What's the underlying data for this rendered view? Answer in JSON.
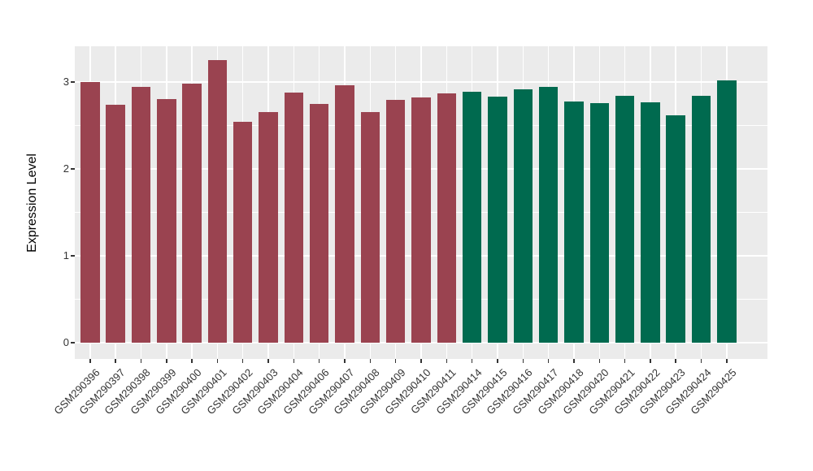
{
  "figure": {
    "background": "#FFFFFF",
    "panel_bg": "#EBEBEB",
    "grid_color": "#FFFFFF",
    "tick_color": "#333333",
    "axis_text_color": "#333333",
    "axis_title_color": "#000000"
  },
  "chart_data": {
    "type": "bar",
    "title": "",
    "xlabel": "",
    "ylabel": "Expression Level",
    "categories": [
      "GSM290396",
      "GSM290397",
      "GSM290398",
      "GSM290399",
      "GSM290400",
      "GSM290401",
      "GSM290402",
      "GSM290403",
      "GSM290404",
      "GSM290406",
      "GSM290407",
      "GSM290408",
      "GSM290409",
      "GSM290410",
      "GSM290411",
      "GSM290414",
      "GSM290415",
      "GSM290416",
      "GSM290417",
      "GSM290418",
      "GSM290420",
      "GSM290421",
      "GSM290422",
      "GSM290423",
      "GSM290424",
      "GSM290425"
    ],
    "values": [
      3.0,
      2.74,
      2.94,
      2.8,
      2.98,
      3.25,
      2.54,
      2.65,
      2.88,
      2.75,
      2.96,
      2.65,
      2.79,
      2.82,
      2.87,
      2.89,
      2.83,
      2.92,
      2.94,
      2.78,
      2.76,
      2.84,
      2.77,
      2.62,
      2.84,
      3.02
    ],
    "colors": [
      "#9A4350",
      "#9A4350",
      "#9A4350",
      "#9A4350",
      "#9A4350",
      "#9A4350",
      "#9A4350",
      "#9A4350",
      "#9A4350",
      "#9A4350",
      "#9A4350",
      "#9A4350",
      "#9A4350",
      "#9A4350",
      "#9A4350",
      "#006A4F",
      "#006A4F",
      "#006A4F",
      "#006A4F",
      "#006A4F",
      "#006A4F",
      "#006A4F",
      "#006A4F",
      "#006A4F",
      "#006A4F",
      "#006A4F"
    ],
    "group_colors": {
      "maroon": "#9A4350",
      "green": "#006A4F"
    },
    "yticks": [
      0,
      1,
      2,
      3
    ],
    "yticks_minor": [
      0.5,
      1.5,
      2.5
    ],
    "ylim": [
      0,
      3.25
    ],
    "ylim_display": [
      -0.19,
      3.41
    ],
    "grid": "on",
    "legend": "none",
    "x_label_angle": 45
  }
}
